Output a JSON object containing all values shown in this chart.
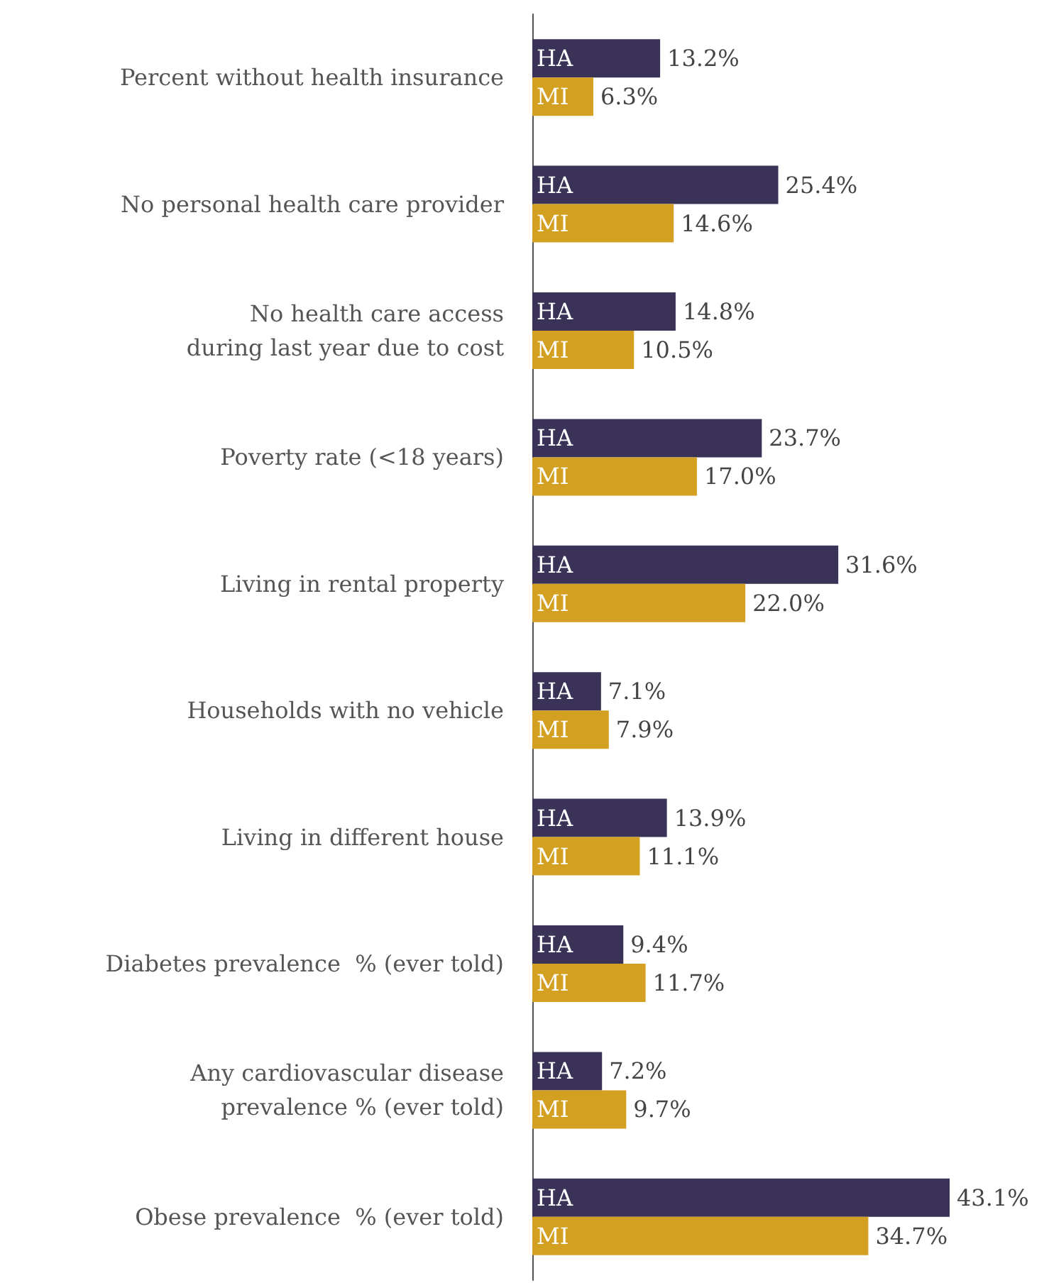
{
  "chart_data": {
    "type": "bar",
    "orientation": "horizontal",
    "legend": false,
    "categories": [
      "Percent without health insurance",
      "No personal health care provider",
      "No health care access\nduring last year due to cost",
      "Poverty rate (<18 years)",
      "Living in rental property",
      "Households with no vehicle",
      "Living in different house",
      "Diabetes prevalence  % (ever told)",
      "Any cardiovascular disease\nprevalence % (ever told)",
      "Obese prevalence  % (ever told)"
    ],
    "series": [
      {
        "name": "HA",
        "color": "#3b3258",
        "values": [
          13.2,
          25.4,
          14.8,
          23.7,
          31.6,
          7.1,
          13.9,
          9.4,
          7.2,
          43.1
        ],
        "value_labels": [
          "13.2%",
          "25.4%",
          "14.8%",
          "23.7%",
          "31.6%",
          "7.1%",
          "13.9%",
          "9.4%",
          "7.2%",
          "43.1%"
        ]
      },
      {
        "name": "MI",
        "color": "#d4a021",
        "values": [
          6.3,
          14.6,
          10.5,
          17.0,
          22.0,
          7.9,
          11.1,
          11.7,
          9.7,
          34.7
        ],
        "value_labels": [
          "6.3%",
          "14.6%",
          "10.5%",
          "17.0%",
          "22.0%",
          "7.9%",
          "11.1%",
          "11.7%",
          "9.7%",
          "34.7%"
        ]
      }
    ]
  }
}
